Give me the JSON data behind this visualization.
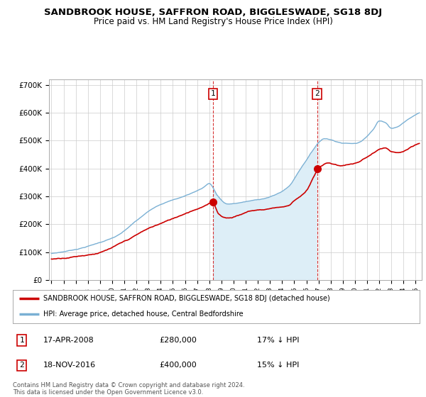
{
  "title": "SANDBROOK HOUSE, SAFFRON ROAD, BIGGLESWADE, SG18 8DJ",
  "subtitle": "Price paid vs. HM Land Registry's House Price Index (HPI)",
  "ylabel_ticks": [
    "£0",
    "£100K",
    "£200K",
    "£300K",
    "£400K",
    "£500K",
    "£600K",
    "£700K"
  ],
  "ytick_values": [
    0,
    100000,
    200000,
    300000,
    400000,
    500000,
    600000,
    700000
  ],
  "ylim": [
    0,
    720000
  ],
  "xlim_start": 1994.8,
  "xlim_end": 2025.5,
  "purchase1_x": 2008.29,
  "purchase1_y": 280000,
  "purchase1_label": "1",
  "purchase2_x": 2016.88,
  "purchase2_y": 400000,
  "purchase2_label": "2",
  "red_line_color": "#cc0000",
  "blue_line_color": "#7ab0d4",
  "blue_fill_color": "#ddeef7",
  "background_color": "#ffffff",
  "grid_color": "#cccccc",
  "legend_line1": "SANDBROOK HOUSE, SAFFRON ROAD, BIGGLESWADE, SG18 8DJ (detached house)",
  "legend_line2": "HPI: Average price, detached house, Central Bedfordshire",
  "table_row1": [
    "1",
    "17-APR-2008",
    "£280,000",
    "17% ↓ HPI"
  ],
  "table_row2": [
    "2",
    "18-NOV-2016",
    "£400,000",
    "15% ↓ HPI"
  ],
  "footer": "Contains HM Land Registry data © Crown copyright and database right 2024.\nThis data is licensed under the Open Government Licence v3.0.",
  "title_fontsize": 9.5,
  "subtitle_fontsize": 8.5,
  "tick_fontsize": 7.5,
  "xtick_years": [
    1995,
    1996,
    1997,
    1998,
    1999,
    2000,
    2001,
    2002,
    2003,
    2004,
    2005,
    2006,
    2007,
    2008,
    2009,
    2010,
    2011,
    2012,
    2013,
    2014,
    2015,
    2016,
    2017,
    2018,
    2019,
    2020,
    2021,
    2022,
    2023,
    2024,
    2025
  ]
}
